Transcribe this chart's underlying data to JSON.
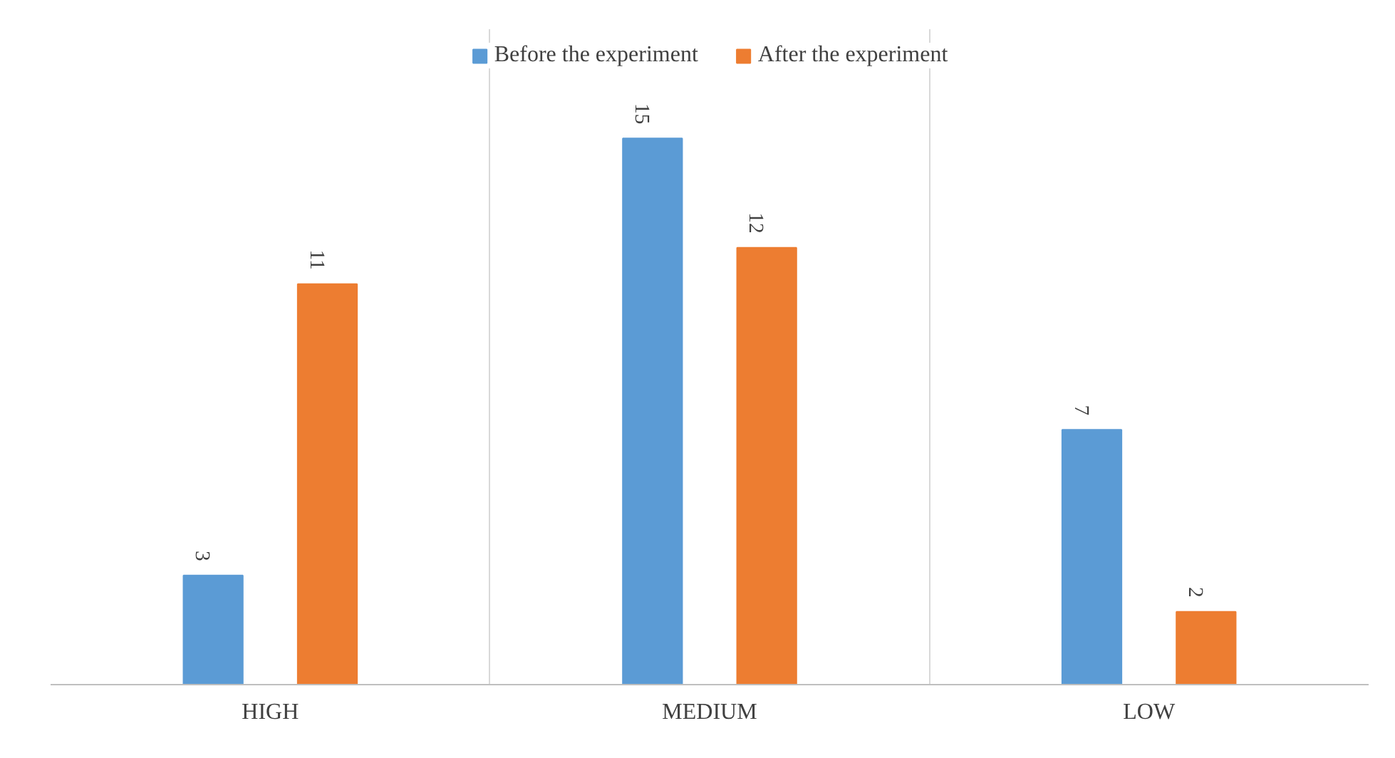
{
  "chart_data": {
    "type": "bar",
    "categories": [
      "HIGH",
      "MEDIUM",
      "LOW"
    ],
    "series": [
      {
        "name": "Before the experiment",
        "color": "#5b9bd5",
        "values": [
          3,
          15,
          7
        ]
      },
      {
        "name": "After the experiment",
        "color": "#ed7d31",
        "values": [
          11,
          12,
          2
        ]
      }
    ],
    "data_labels": true,
    "legend": "top",
    "grid": "x"
  }
}
